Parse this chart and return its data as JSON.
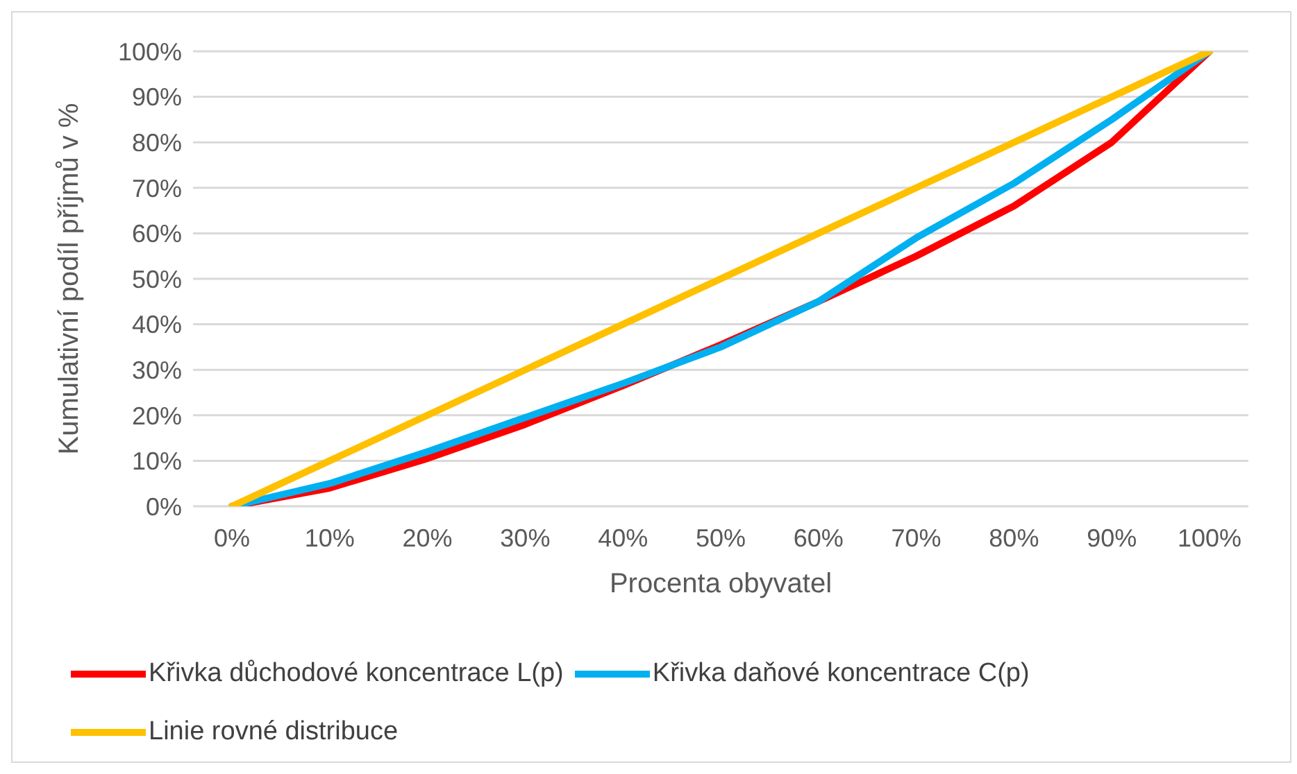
{
  "chart_data": {
    "type": "line",
    "xlabel": "Procenta obyvatel",
    "ylabel": "Kumulativní podíl příjmů v %",
    "categories": [
      "0%",
      "10%",
      "20%",
      "30%",
      "40%",
      "50%",
      "60%",
      "70%",
      "80%",
      "90%",
      "100%"
    ],
    "series": [
      {
        "name": "Křivka důchodové koncentrace L(p)",
        "color": "#ff0000",
        "values": [
          0,
          4,
          10.5,
          18,
          26.5,
          35.5,
          45,
          55,
          66,
          80,
          100
        ]
      },
      {
        "name": "Křivka daňové koncentrace C(p)",
        "color": "#00b0f0",
        "values": [
          0,
          5,
          12,
          19.5,
          27,
          35,
          45,
          59,
          71,
          85,
          100
        ]
      },
      {
        "name": "Linie rovné distribuce",
        "color": "#ffc000",
        "values": [
          0,
          10,
          20,
          30,
          40,
          50,
          60,
          70,
          80,
          90,
          100
        ]
      }
    ],
    "ylim": [
      0,
      100
    ],
    "yticks": [
      {
        "value": 0,
        "label": "0%"
      },
      {
        "value": 10,
        "label": "10%"
      },
      {
        "value": 20,
        "label": "20%"
      },
      {
        "value": 30,
        "label": "30%"
      },
      {
        "value": 40,
        "label": "40%"
      },
      {
        "value": 50,
        "label": "50%"
      },
      {
        "value": 60,
        "label": "60%"
      },
      {
        "value": 70,
        "label": "70%"
      },
      {
        "value": 80,
        "label": "80%"
      },
      {
        "value": 90,
        "label": "90%"
      },
      {
        "value": 100,
        "label": "100%"
      }
    ],
    "grid": "y",
    "legend": "bottom",
    "marker": "none",
    "line_style": "solid"
  }
}
